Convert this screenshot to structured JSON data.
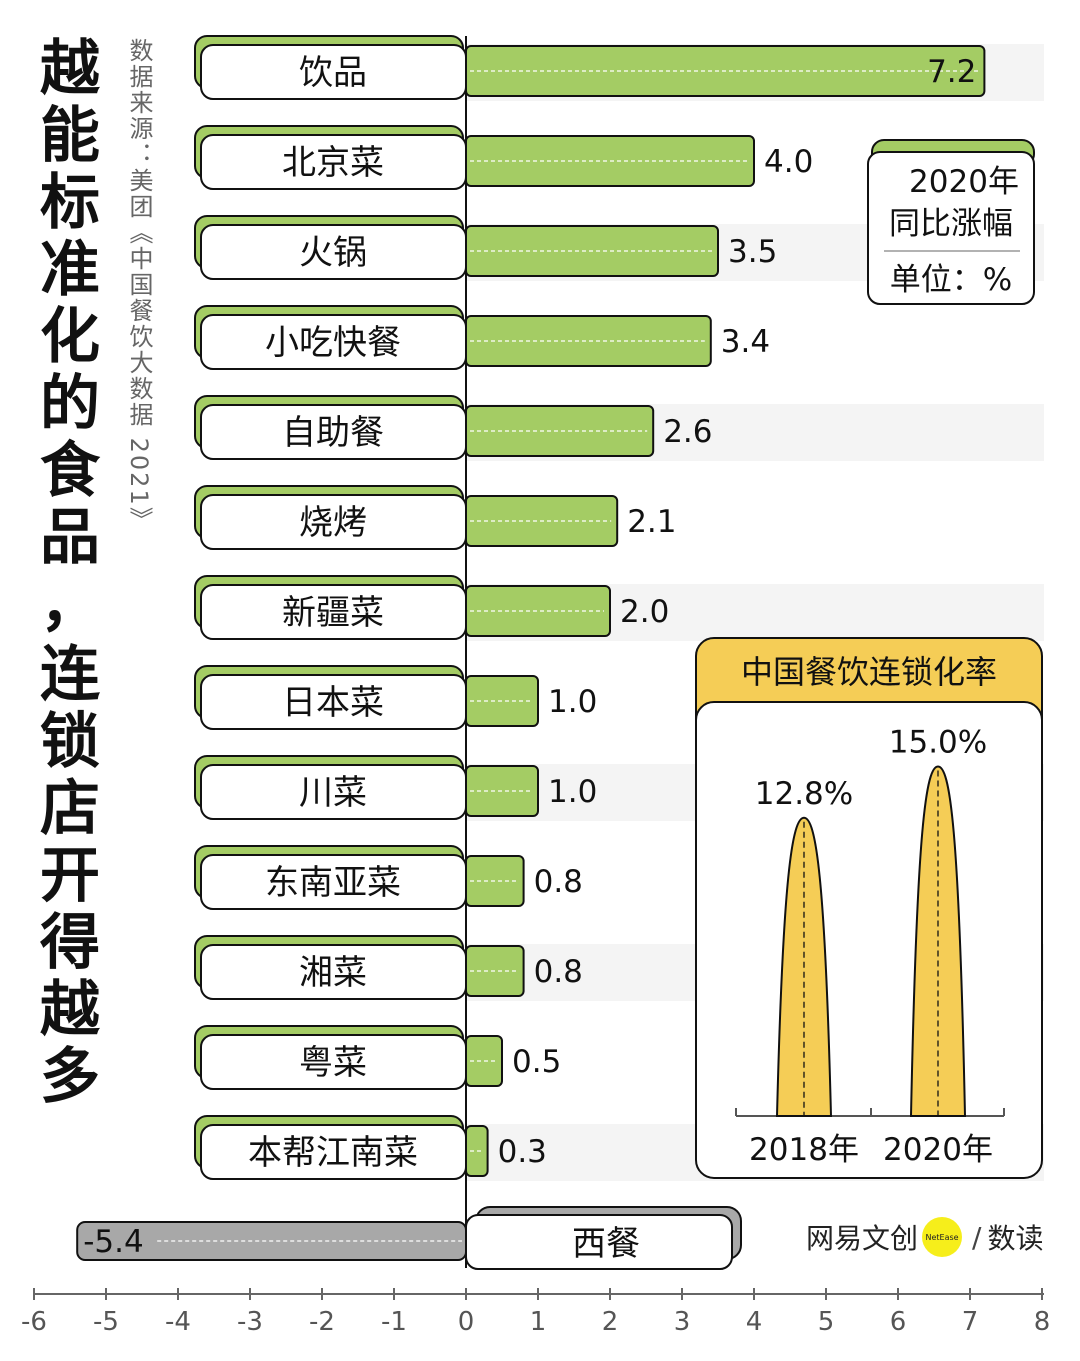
{
  "title_line1": "越能标准化的食品，",
  "title_line2": "连锁店开得越多",
  "source": "数据来源：美团《中国餐饮大数据 2021》",
  "legend": {
    "line1": "2020年",
    "line2": "同比涨幅",
    "line3": "单位：%"
  },
  "colors": {
    "bar_pos": "#a4cc64",
    "bar_neg": "#a8a8a8",
    "inset_yellow": "#f5cd56",
    "stripe": "#f4f4f4",
    "ink": "#111111"
  },
  "chart_data": [
    {
      "type": "bar",
      "orientation": "horizontal",
      "title": "2020年同比涨幅",
      "unit": "%",
      "categories": [
        "饮品",
        "北京菜",
        "火锅",
        "小吃快餐",
        "自助餐",
        "烧烤",
        "新疆菜",
        "日本菜",
        "川菜",
        "东南亚菜",
        "湘菜",
        "粤菜",
        "本帮江南菜",
        "西餐"
      ],
      "values": [
        7.2,
        4.0,
        3.5,
        3.4,
        2.6,
        2.1,
        2.0,
        1.0,
        1.0,
        0.8,
        0.8,
        0.5,
        0.3,
        -5.4
      ],
      "value_labels": [
        "7.2",
        "4.0",
        "3.5",
        "3.4",
        "2.6",
        "2.1",
        "2.0",
        "1.0",
        "1.0",
        "0.8",
        "0.8",
        "0.5",
        "0.3",
        "-5.4"
      ],
      "xlim": [
        -6,
        8
      ],
      "xticks": [
        "-6",
        "-5",
        "-4",
        "-3",
        "-2",
        "-1",
        "0",
        "1",
        "2",
        "3",
        "4",
        "5",
        "6",
        "7",
        "8"
      ]
    },
    {
      "type": "area",
      "title": "中国餐饮连锁化率",
      "categories": [
        "2018年",
        "2020年"
      ],
      "values": [
        12.8,
        15.0
      ],
      "value_labels": [
        "12.8%",
        "15.0%"
      ],
      "unit": "%"
    }
  ],
  "logo": {
    "brand1": "网易文创",
    "badge": "NetEase",
    "brand2": "数读"
  }
}
